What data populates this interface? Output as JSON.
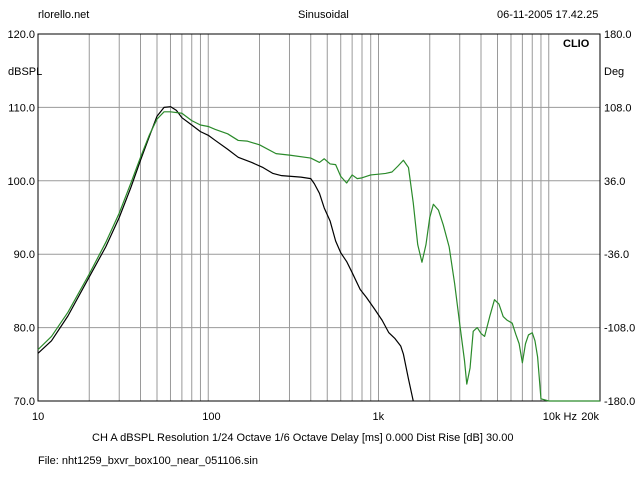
{
  "header": {
    "site": "rlorello.net",
    "mode": "Sinusoidal",
    "datetime": "06-11-2005 17.42.25"
  },
  "chart_data": {
    "type": "line",
    "brand": "CLIO",
    "x_scale": "log",
    "xlim": [
      10,
      20000
    ],
    "ylim": [
      70,
      120
    ],
    "y2lim": [
      -180,
      180
    ],
    "ylabel": "dBSPL",
    "y2label": "Deg",
    "x_tick_labels": [
      {
        "value": 10,
        "label": "10"
      },
      {
        "value": 100,
        "label": "100"
      },
      {
        "value": 1000,
        "label": "1k"
      },
      {
        "value": 10000,
        "label": "10k Hz"
      },
      {
        "value": 20000,
        "label": "20k"
      }
    ],
    "y_tick_labels": [
      "120.0",
      "110.0",
      "100.0",
      "90.0",
      "80.0",
      "70.0"
    ],
    "y_tick_values": [
      120,
      110,
      100,
      90,
      80,
      70
    ],
    "y2_tick_labels": [
      "180.0",
      "108.0",
      "36.0",
      "-36.0",
      "-108.0",
      "-180.0"
    ],
    "y2_tick_values": [
      180,
      108,
      36,
      -36,
      -108,
      -180
    ],
    "grid": true,
    "series": [
      {
        "color": "#000000",
        "points": [
          [
            10,
            76.5
          ],
          [
            12,
            78.2
          ],
          [
            15,
            81.6
          ],
          [
            20,
            86.9
          ],
          [
            25,
            91.0
          ],
          [
            30,
            95.0
          ],
          [
            35,
            99.0
          ],
          [
            40,
            102.8
          ],
          [
            45,
            106.0
          ],
          [
            50,
            108.8
          ],
          [
            55,
            110.0
          ],
          [
            60,
            110.1
          ],
          [
            65,
            109.6
          ],
          [
            70,
            108.6
          ],
          [
            80,
            107.6
          ],
          [
            90,
            106.7
          ],
          [
            100,
            106.2
          ],
          [
            110,
            105.5
          ],
          [
            130,
            104.3
          ],
          [
            150,
            103.2
          ],
          [
            180,
            102.5
          ],
          [
            210,
            101.8
          ],
          [
            240,
            101.0
          ],
          [
            270,
            100.7
          ],
          [
            350,
            100.5
          ],
          [
            400,
            100.3
          ],
          [
            420,
            99.6
          ],
          [
            450,
            98.3
          ],
          [
            480,
            96.3
          ],
          [
            520,
            94.5
          ],
          [
            560,
            91.8
          ],
          [
            600,
            90.2
          ],
          [
            650,
            89.0
          ],
          [
            700,
            87.5
          ],
          [
            780,
            85.2
          ],
          [
            850,
            84.1
          ],
          [
            950,
            82.5
          ],
          [
            1050,
            81.0
          ],
          [
            1150,
            79.3
          ],
          [
            1250,
            78.5
          ],
          [
            1350,
            77.5
          ],
          [
            1400,
            76.4
          ],
          [
            1500,
            73.0
          ],
          [
            1600,
            70.0
          ]
        ]
      },
      {
        "color": "#2a8a2a",
        "points": [
          [
            10,
            77.0
          ],
          [
            12,
            78.8
          ],
          [
            15,
            82.1
          ],
          [
            20,
            87.3
          ],
          [
            25,
            91.6
          ],
          [
            30,
            95.6
          ],
          [
            35,
            99.6
          ],
          [
            40,
            103.2
          ],
          [
            45,
            106.2
          ],
          [
            50,
            108.4
          ],
          [
            55,
            109.4
          ],
          [
            60,
            109.4
          ],
          [
            70,
            109.2
          ],
          [
            80,
            108.2
          ],
          [
            90,
            107.6
          ],
          [
            100,
            107.4
          ],
          [
            110,
            107.0
          ],
          [
            130,
            106.4
          ],
          [
            150,
            105.5
          ],
          [
            170,
            105.4
          ],
          [
            200,
            104.9
          ],
          [
            250,
            103.7
          ],
          [
            300,
            103.5
          ],
          [
            400,
            103.1
          ],
          [
            450,
            102.5
          ],
          [
            480,
            103.0
          ],
          [
            520,
            102.3
          ],
          [
            560,
            102.2
          ],
          [
            600,
            100.6
          ],
          [
            650,
            99.7
          ],
          [
            700,
            100.8
          ],
          [
            750,
            100.3
          ],
          [
            800,
            100.4
          ],
          [
            900,
            100.8
          ],
          [
            1000,
            100.9
          ],
          [
            1100,
            101.0
          ],
          [
            1200,
            101.2
          ],
          [
            1300,
            102.0
          ],
          [
            1400,
            102.8
          ],
          [
            1500,
            101.8
          ],
          [
            1600,
            97.0
          ],
          [
            1700,
            91.3
          ],
          [
            1800,
            88.9
          ],
          [
            1900,
            91.3
          ],
          [
            2000,
            95.0
          ],
          [
            2100,
            96.8
          ],
          [
            2250,
            96.0
          ],
          [
            2400,
            94.0
          ],
          [
            2600,
            91.0
          ],
          [
            2800,
            86.0
          ],
          [
            3000,
            80.5
          ],
          [
            3200,
            75.5
          ],
          [
            3300,
            72.3
          ],
          [
            3450,
            74.5
          ],
          [
            3600,
            79.5
          ],
          [
            3800,
            80.0
          ],
          [
            4000,
            79.2
          ],
          [
            4200,
            78.8
          ],
          [
            4500,
            81.5
          ],
          [
            4800,
            83.8
          ],
          [
            5100,
            83.2
          ],
          [
            5400,
            81.5
          ],
          [
            5700,
            81.0
          ],
          [
            6100,
            80.6
          ],
          [
            6400,
            79.1
          ],
          [
            6700,
            77.8
          ],
          [
            7000,
            75.2
          ],
          [
            7300,
            77.8
          ],
          [
            7600,
            79.0
          ],
          [
            8000,
            79.3
          ],
          [
            8300,
            78.2
          ],
          [
            8600,
            76.0
          ],
          [
            9000,
            70.3
          ],
          [
            10000,
            70.0
          ],
          [
            20000,
            70.0
          ]
        ]
      }
    ]
  },
  "footer": {
    "settings": "CH A    dBSPL    Resolution 1/24 Octave    1/6 Octave    Delay [ms] 0.000    Dist Rise [dB] 30.00",
    "file": "File: nht1259_bxvr_box100_near_051106.sin"
  }
}
